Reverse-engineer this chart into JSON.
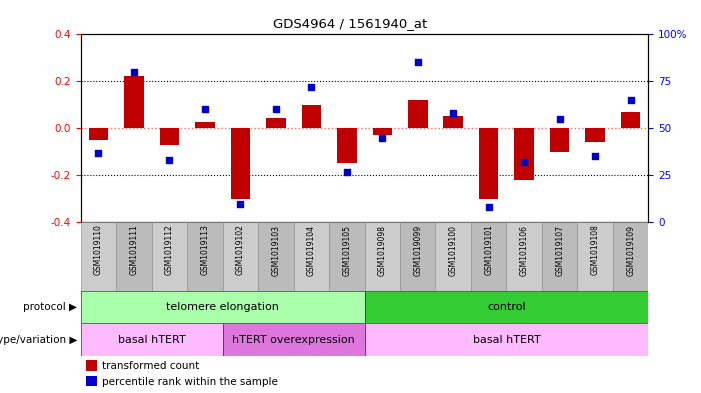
{
  "title": "GDS4964 / 1561940_at",
  "samples": [
    "GSM1019110",
    "GSM1019111",
    "GSM1019112",
    "GSM1019113",
    "GSM1019102",
    "GSM1019103",
    "GSM1019104",
    "GSM1019105",
    "GSM1019098",
    "GSM1019099",
    "GSM1019100",
    "GSM1019101",
    "GSM1019106",
    "GSM1019107",
    "GSM1019108",
    "GSM1019109"
  ],
  "bar_values": [
    -0.05,
    0.22,
    -0.07,
    0.025,
    -0.3,
    0.045,
    0.1,
    -0.15,
    -0.03,
    0.12,
    0.05,
    -0.3,
    -0.22,
    -0.1,
    -0.06,
    0.07
  ],
  "dot_values": [
    37,
    80,
    33,
    60,
    10,
    60,
    72,
    27,
    45,
    85,
    58,
    8,
    32,
    55,
    35,
    65
  ],
  "bar_color": "#c00000",
  "dot_color": "#0000cc",
  "ylim_left": [
    -0.4,
    0.4
  ],
  "ylim_right": [
    0,
    100
  ],
  "yticks_left": [
    -0.4,
    -0.2,
    0.0,
    0.2,
    0.4
  ],
  "yticks_right": [
    0,
    25,
    50,
    75,
    100
  ],
  "ytick_labels_right": [
    "0",
    "25",
    "50",
    "75",
    "100%"
  ],
  "zero_line_color": "#ff6666",
  "protocol_groups": [
    {
      "label": "telomere elongation",
      "start": 0,
      "end": 8,
      "color": "#aaffaa"
    },
    {
      "label": "control",
      "start": 8,
      "end": 16,
      "color": "#33cc33"
    }
  ],
  "genotype_groups": [
    {
      "label": "basal hTERT",
      "start": 0,
      "end": 4,
      "color": "#ffbbff"
    },
    {
      "label": "hTERT overexpression",
      "start": 4,
      "end": 8,
      "color": "#dd77dd"
    },
    {
      "label": "basal hTERT",
      "start": 8,
      "end": 16,
      "color": "#ffbbff"
    }
  ],
  "legend_bar_label": "transformed count",
  "legend_dot_label": "percentile rank within the sample",
  "protocol_label": "protocol",
  "genotype_label": "genotype/variation",
  "fig_width": 7.01,
  "fig_height": 3.93,
  "dpi": 100
}
